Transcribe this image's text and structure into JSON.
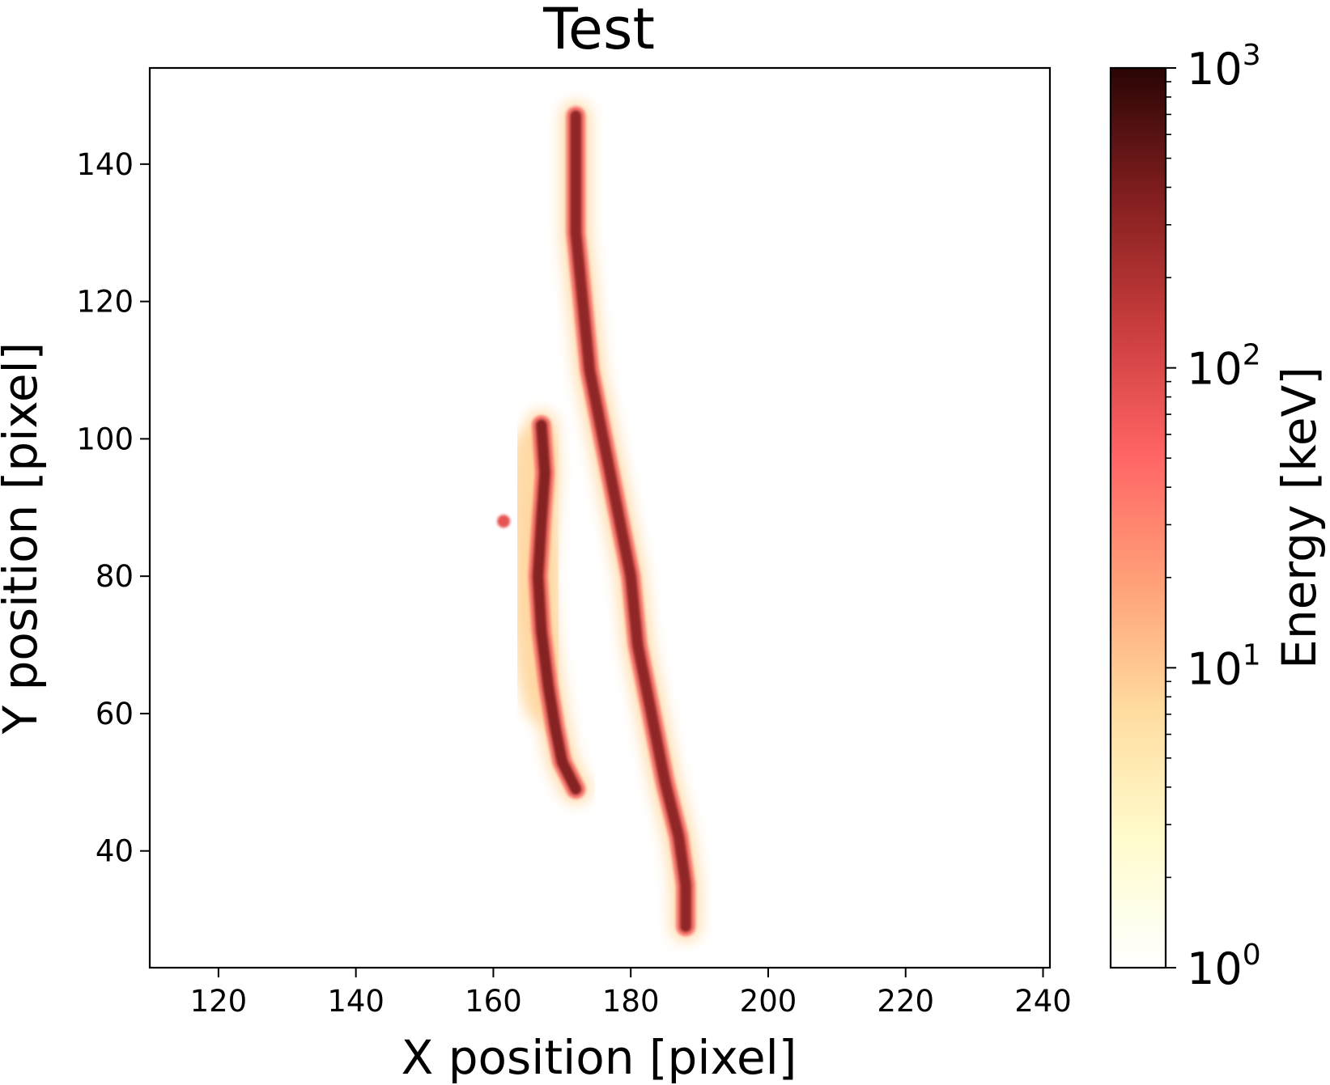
{
  "chart_data": {
    "type": "heatmap",
    "title": "Test",
    "xlabel": "X position [pixel]",
    "ylabel": "Y position [pixel]",
    "xlim": [
      110,
      241
    ],
    "ylim": [
      23,
      154
    ],
    "x_ticks": [
      120,
      140,
      160,
      180,
      200,
      220,
      240
    ],
    "y_ticks": [
      40,
      60,
      80,
      100,
      120,
      140
    ],
    "colorbar": {
      "label": "Energy [keV]",
      "scale": "log",
      "range": [
        1,
        1000
      ],
      "ticks": [
        {
          "value": 1,
          "base": "10",
          "exp": "0"
        },
        {
          "value": 10,
          "base": "10",
          "exp": "1"
        },
        {
          "value": 100,
          "base": "10",
          "exp": "2"
        },
        {
          "value": 1000,
          "base": "10",
          "exp": "3"
        }
      ],
      "colors": [
        "#ffffff",
        "#fffccc",
        "#ffdca0",
        "#ffa078",
        "#ff6464",
        "#c83c3c",
        "#821e1e",
        "#2a0505"
      ]
    },
    "grid": false,
    "tracks": [
      {
        "name": "",
        "core_energy_keV": 300,
        "halo_energy_keV": 8,
        "points": [
          [
            172,
            147
          ],
          [
            172,
            140
          ],
          [
            172,
            130
          ],
          [
            173,
            120
          ],
          [
            174,
            110
          ],
          [
            176,
            100
          ],
          [
            178,
            90
          ],
          [
            180,
            80
          ],
          [
            181,
            70
          ],
          [
            183,
            60
          ],
          [
            185,
            50
          ],
          [
            187,
            42
          ],
          [
            188,
            35
          ],
          [
            188,
            29
          ]
        ],
        "halo_points": [
          [
            172,
            146
          ],
          [
            172,
            136
          ],
          [
            172,
            133
          ]
        ]
      },
      {
        "name": "",
        "core_energy_keV": 350,
        "halo_energy_keV": 8,
        "points": [
          [
            167,
            102
          ],
          [
            167.5,
            95
          ],
          [
            167,
            88
          ],
          [
            166.5,
            80
          ],
          [
            167,
            72
          ],
          [
            168,
            64
          ],
          [
            169,
            58
          ],
          [
            170,
            53
          ],
          [
            172,
            49
          ]
        ],
        "halo_points": [
          [
            166,
            98
          ],
          [
            165,
            90
          ],
          [
            166,
            82
          ],
          [
            166,
            74
          ],
          [
            167,
            66
          ],
          [
            168,
            62
          ]
        ]
      }
    ],
    "hotspots": [
      {
        "x": 161.5,
        "y": 88,
        "energy_keV": 80
      }
    ]
  }
}
